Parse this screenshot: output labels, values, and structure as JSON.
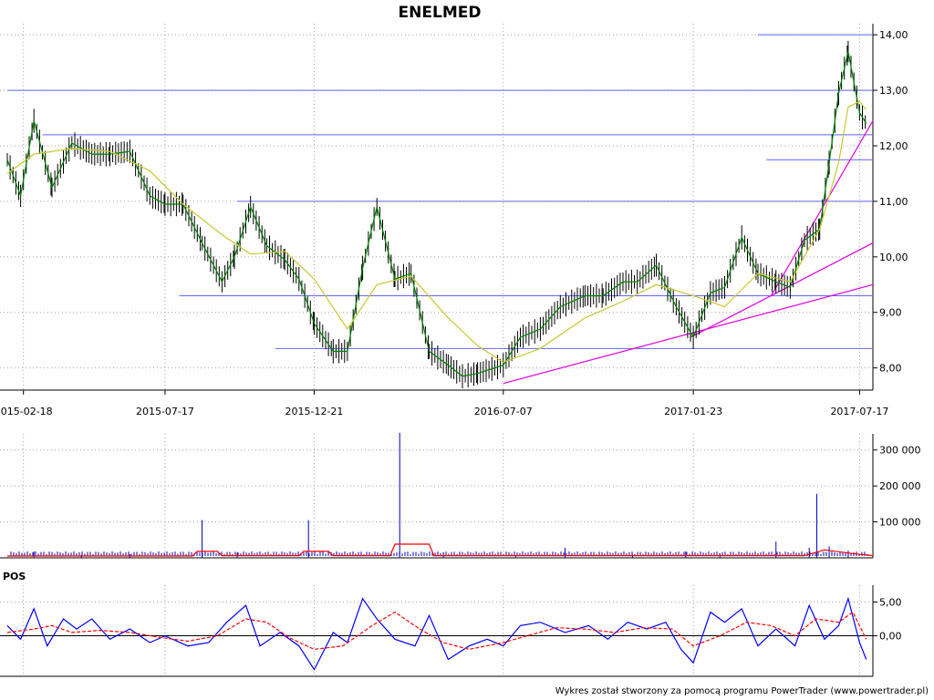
{
  "chart_data": [
    {
      "type": "line",
      "panel": "price",
      "title": "ENELMED",
      "x_tick_labels": [
        "2015-02-18",
        "2015-07-17",
        "2015-12-21",
        "2016-07-07",
        "2017-01-23",
        "2017-07-17"
      ],
      "y_tick_labels": [
        "8,00",
        "9,00",
        "10,00",
        "11,00",
        "12,00",
        "13,00",
        "14,00"
      ],
      "y_ticks": [
        8,
        9,
        10,
        11,
        12,
        13,
        14
      ],
      "ylim": [
        7.6,
        14.2
      ],
      "x_range": [
        "2015-02-01",
        "2017-07-31"
      ],
      "grid": true,
      "series": [
        {
          "color": "#008000",
          "x": [
            "2015-02-01",
            "2015-02-15",
            "2015-03-01",
            "2015-03-20",
            "2015-04-10",
            "2015-05-01",
            "2015-05-20",
            "2015-06-10",
            "2015-07-01",
            "2015-07-17",
            "2015-08-05",
            "2015-08-25",
            "2015-09-15",
            "2015-09-28",
            "2015-10-15",
            "2015-11-01",
            "2015-11-20",
            "2015-12-05",
            "2015-12-21",
            "2016-01-10",
            "2016-01-25",
            "2016-02-10",
            "2016-02-25",
            "2016-03-15",
            "2016-04-01",
            "2016-04-20",
            "2016-05-10",
            "2016-05-25",
            "2016-06-10",
            "2016-07-07",
            "2016-07-25",
            "2016-08-15",
            "2016-09-05",
            "2016-10-01",
            "2016-10-20",
            "2016-11-10",
            "2016-11-25",
            "2016-12-15",
            "2017-01-05",
            "2017-01-23",
            "2017-02-10",
            "2017-02-25",
            "2017-03-15",
            "2017-04-01",
            "2017-04-20",
            "2017-05-05",
            "2017-05-20",
            "2017-06-05",
            "2017-06-15",
            "2017-06-25",
            "2017-07-05",
            "2017-07-17",
            "2017-07-24"
          ],
          "y": [
            11.75,
            11.1,
            12.45,
            11.25,
            12.05,
            11.85,
            11.85,
            11.9,
            11.1,
            10.95,
            10.95,
            10.25,
            9.55,
            10.0,
            10.9,
            10.2,
            9.95,
            9.6,
            8.8,
            8.3,
            8.3,
            9.8,
            10.9,
            9.6,
            9.7,
            8.3,
            8.05,
            7.85,
            7.9,
            8.05,
            8.55,
            8.7,
            9.1,
            9.3,
            9.3,
            9.55,
            9.55,
            9.85,
            9.1,
            8.55,
            9.35,
            9.45,
            10.35,
            9.7,
            9.55,
            9.45,
            10.3,
            10.5,
            11.7,
            12.95,
            13.7,
            12.6,
            12.4
          ]
        },
        {
          "color": "#c8c832",
          "x": [
            "2015-02-01",
            "2015-03-01",
            "2015-04-10",
            "2015-05-20",
            "2015-07-01",
            "2015-08-05",
            "2015-09-15",
            "2015-10-15",
            "2015-11-20",
            "2015-12-21",
            "2016-01-25",
            "2016-02-25",
            "2016-04-01",
            "2016-05-10",
            "2016-06-10",
            "2016-07-07",
            "2016-08-15",
            "2016-10-01",
            "2016-11-10",
            "2016-12-15",
            "2017-01-23",
            "2017-02-25",
            "2017-04-01",
            "2017-05-05",
            "2017-06-05",
            "2017-06-25",
            "2017-07-05",
            "2017-07-17",
            "2017-07-24"
          ],
          "y": [
            11.5,
            11.85,
            11.95,
            11.9,
            11.55,
            10.95,
            10.4,
            10.05,
            10.1,
            9.6,
            8.7,
            9.5,
            9.65,
            8.9,
            8.4,
            8.1,
            8.35,
            8.9,
            9.2,
            9.5,
            9.3,
            9.1,
            9.7,
            9.55,
            10.5,
            11.7,
            12.7,
            12.8,
            12.65
          ]
        }
      ],
      "annotations": {
        "horizontal_levels": [
          {
            "y": 14.0,
            "from": "2017-04-01",
            "to": "2017-07-31"
          },
          {
            "y": 13.0,
            "from": "2015-02-01",
            "to": "2017-07-31"
          },
          {
            "y": 12.2,
            "from": "2015-03-10",
            "to": "2017-07-31"
          },
          {
            "y": 11.75,
            "from": "2017-04-10",
            "to": "2017-07-31"
          },
          {
            "y": 11.0,
            "from": "2015-10-01",
            "to": "2017-07-31"
          },
          {
            "y": 9.3,
            "from": "2015-08-01",
            "to": "2017-07-31"
          },
          {
            "y": 8.35,
            "from": "2015-11-10",
            "to": "2017-07-31"
          }
        ],
        "trend_lines": [
          {
            "from": [
              "2016-07-07",
              7.72
            ],
            "to": [
              "2017-07-31",
              9.5
            ]
          },
          {
            "from": [
              "2017-01-20",
              8.55
            ],
            "to": [
              "2017-07-31",
              10.25
            ]
          },
          {
            "from": [
              "2017-04-15",
              9.3
            ],
            "to": [
              "2017-07-31",
              12.45
            ]
          }
        ]
      }
    },
    {
      "type": "bar",
      "panel": "volume",
      "y_tick_labels": [
        "100 000",
        "200 000",
        "300 000"
      ],
      "y_ticks": [
        100000,
        200000,
        300000
      ],
      "ylim": [
        0,
        345000
      ],
      "x_range": [
        "2015-02-01",
        "2017-07-31"
      ],
      "grid": true,
      "series": [
        {
          "color": "#0000c0",
          "x": [
            "2015-03-01",
            "2015-04-20",
            "2015-06-10",
            "2015-08-25",
            "2015-10-01",
            "2015-12-15",
            "2016-03-20",
            "2016-05-05",
            "2016-07-20",
            "2016-09-10",
            "2016-11-20",
            "2017-01-15",
            "2017-02-20",
            "2017-04-20",
            "2017-05-25",
            "2017-06-02",
            "2017-06-15",
            "2017-07-05"
          ],
          "y": [
            18000,
            8000,
            10000,
            105000,
            14000,
            105000,
            348000,
            15000,
            7000,
            28000,
            9000,
            18000,
            12000,
            45000,
            28000,
            178000,
            32000,
            20000
          ]
        },
        {
          "color": "#ff0000",
          "x": [
            "2015-02-01",
            "2015-08-15",
            "2015-08-20",
            "2015-09-10",
            "2015-09-15",
            "2015-12-05",
            "2015-12-10",
            "2016-01-05",
            "2016-01-10",
            "2016-03-10",
            "2016-03-15",
            "2016-04-20",
            "2016-04-25",
            "2016-10-01",
            "2017-05-20",
            "2017-06-10",
            "2017-07-10",
            "2017-07-31"
          ],
          "y": [
            5000,
            5000,
            18000,
            18000,
            6000,
            6000,
            18000,
            18000,
            6000,
            6000,
            38000,
            38000,
            6000,
            6000,
            6000,
            22000,
            12000,
            6000
          ]
        }
      ]
    },
    {
      "type": "line",
      "panel": "oscillator",
      "panel_label": "POS",
      "y_tick_labels": [
        "0,00",
        "5,00"
      ],
      "y_ticks": [
        0,
        5
      ],
      "ylim": [
        -6,
        7.5
      ],
      "x_range": [
        "2015-02-01",
        "2017-07-31"
      ],
      "grid": true,
      "series": [
        {
          "color": "#0000ff",
          "x": [
            "2015-02-01",
            "2015-02-15",
            "2015-03-01",
            "2015-03-15",
            "2015-04-01",
            "2015-04-15",
            "2015-05-01",
            "2015-05-20",
            "2015-06-10",
            "2015-07-01",
            "2015-07-17",
            "2015-08-10",
            "2015-09-01",
            "2015-09-20",
            "2015-10-10",
            "2015-10-25",
            "2015-11-15",
            "2015-12-05",
            "2015-12-21",
            "2016-01-10",
            "2016-01-25",
            "2016-02-10",
            "2016-02-25",
            "2016-03-15",
            "2016-04-05",
            "2016-04-20",
            "2016-05-10",
            "2016-06-01",
            "2016-06-20",
            "2016-07-07",
            "2016-07-25",
            "2016-08-15",
            "2016-09-10",
            "2016-10-05",
            "2016-10-25",
            "2016-11-15",
            "2016-12-05",
            "2016-12-25",
            "2017-01-10",
            "2017-01-23",
            "2017-02-10",
            "2017-02-25",
            "2017-03-15",
            "2017-04-01",
            "2017-04-20",
            "2017-05-10",
            "2017-05-25",
            "2017-06-10",
            "2017-06-25",
            "2017-07-05",
            "2017-07-17",
            "2017-07-24"
          ],
          "y": [
            1.5,
            -0.5,
            4.0,
            -1.5,
            2.5,
            1.0,
            2.5,
            -0.5,
            1.0,
            -1.0,
            0.0,
            -1.5,
            -1.0,
            2.0,
            4.5,
            -1.5,
            0.5,
            -1.5,
            -5.0,
            0.5,
            -1.0,
            5.5,
            2.5,
            -0.5,
            -1.5,
            3.0,
            -3.5,
            -1.5,
            -0.5,
            -1.5,
            1.5,
            2.0,
            0.5,
            1.5,
            -0.5,
            2.0,
            1.0,
            2.0,
            -2.0,
            -4.0,
            3.5,
            2.0,
            4.0,
            -1.5,
            1.0,
            -1.5,
            4.5,
            -0.5,
            1.5,
            5.5,
            -1.0,
            -3.5
          ]
        },
        {
          "color": "#ff0000",
          "x": [
            "2015-02-01",
            "2015-03-01",
            "2015-03-20",
            "2015-04-10",
            "2015-05-10",
            "2015-06-10",
            "2015-07-10",
            "2015-08-10",
            "2015-09-10",
            "2015-10-10",
            "2015-11-01",
            "2015-11-25",
            "2015-12-21",
            "2016-01-20",
            "2016-02-20",
            "2016-03-15",
            "2016-04-10",
            "2016-05-05",
            "2016-06-01",
            "2016-07-07",
            "2016-08-01",
            "2016-09-01",
            "2016-10-01",
            "2016-11-01",
            "2016-12-01",
            "2017-01-01",
            "2017-01-23",
            "2017-02-20",
            "2017-03-20",
            "2017-04-15",
            "2017-05-10",
            "2017-06-01",
            "2017-06-25",
            "2017-07-10",
            "2017-07-24"
          ],
          "y": [
            0.5,
            1.0,
            1.5,
            0.5,
            0.8,
            0.5,
            -0.2,
            -0.8,
            0.0,
            2.5,
            2.0,
            -0.3,
            -2.0,
            -1.5,
            1.5,
            3.5,
            1.0,
            -1.0,
            -2.0,
            -1.0,
            0.0,
            1.2,
            1.0,
            0.5,
            1.2,
            1.0,
            -1.5,
            0.0,
            2.0,
            1.5,
            0.0,
            2.5,
            2.0,
            3.5,
            -0.5
          ]
        }
      ]
    }
  ],
  "footer": "Wykres został stworzony za pomocą programu PowerTrader (www.powertrader.pl)"
}
